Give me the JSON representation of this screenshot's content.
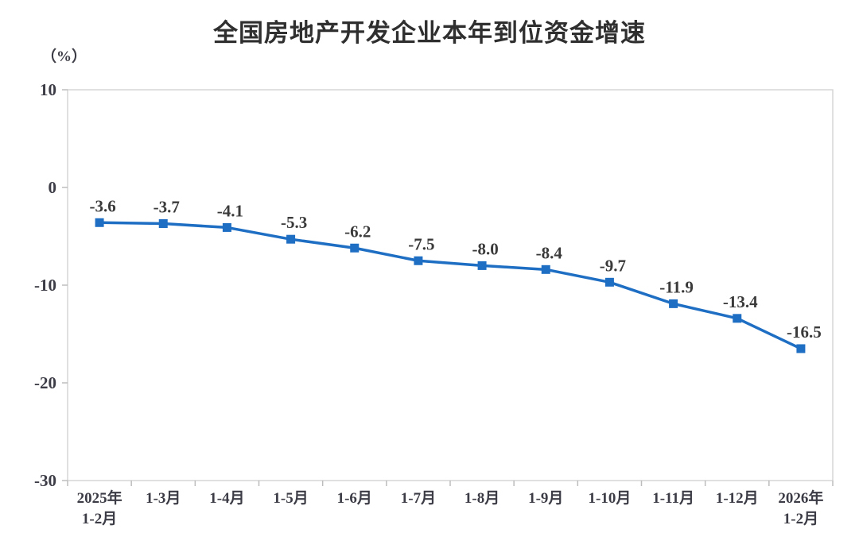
{
  "chart_data": {
    "type": "line",
    "title": "全国房地产开发企业本年到位资金增速",
    "unit_label": "（%）",
    "categories": [
      [
        "2025年",
        "1-2月"
      ],
      [
        "1-3月"
      ],
      [
        "1-4月"
      ],
      [
        "1-5月"
      ],
      [
        "1-6月"
      ],
      [
        "1-7月"
      ],
      [
        "1-8月"
      ],
      [
        "1-9月"
      ],
      [
        "1-10月"
      ],
      [
        "1-11月"
      ],
      [
        "1-12月"
      ],
      [
        "2026年",
        "1-2月"
      ]
    ],
    "values": [
      -3.6,
      -3.7,
      -4.1,
      -5.3,
      -6.2,
      -7.5,
      -8.0,
      -8.4,
      -9.7,
      -11.9,
      -13.4,
      -16.5
    ],
    "value_labels": [
      "-3.6",
      "-3.7",
      "-4.1",
      "-5.3",
      "-6.2",
      "-7.5",
      "-8.0",
      "-8.4",
      "-9.7",
      "-11.9",
      "-13.4",
      "-16.5"
    ],
    "xlabel": "",
    "ylabel": "（%）",
    "ylim": [
      -30,
      10
    ],
    "yticks": [
      10,
      0,
      -10,
      -20,
      -30
    ],
    "grid": false,
    "legend": "none",
    "colors": {
      "line": "#1e6ec4",
      "marker": "#1e6ec4",
      "value_label": "#3a3a3a",
      "tick_label": "#3c3c46",
      "axis_border": "#d6d6d6",
      "tick_mark": "#bdbdbd",
      "title": "#2f2f2f",
      "background": "#ffffff"
    }
  }
}
